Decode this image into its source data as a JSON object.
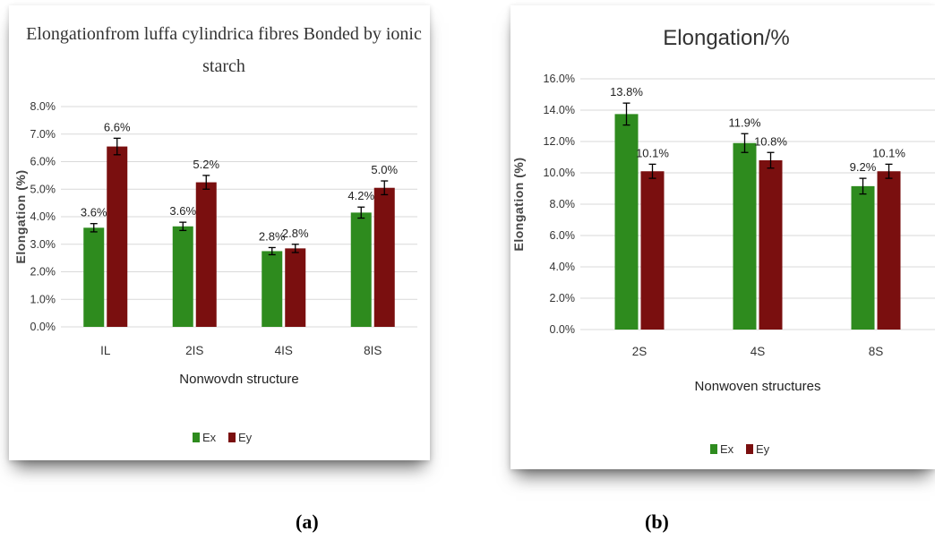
{
  "colors": {
    "ex": "#2e8b1e",
    "ey": "#7a0f0f",
    "grid": "#d9d9d9"
  },
  "captions": {
    "a": "(a)",
    "b": "(b)"
  },
  "chart_data": [
    {
      "type": "bar",
      "title_lines": [
        "Elongationfrom luffa cylindrica fibres Bonded by ionic",
        "starch"
      ],
      "xlabel": "Nonwovdn structure",
      "ylabel": "Elongation (%)",
      "categories": [
        "IL",
        "2IS",
        "4IS",
        "8IS"
      ],
      "ylim": [
        0,
        8
      ],
      "yticks": [
        0,
        1,
        2,
        3,
        4,
        5,
        6,
        7,
        8
      ],
      "tick_labels": [
        "0.0%",
        "1.0%",
        "2.0%",
        "3.0%",
        "4.0%",
        "5.0%",
        "6.0%",
        "7.0%",
        "8.0%"
      ],
      "grid": true,
      "legend_position": "bottom",
      "series": [
        {
          "name": "Ex",
          "values": [
            3.6,
            3.65,
            2.75,
            4.15
          ],
          "errors": [
            0.15,
            0.15,
            0.13,
            0.2
          ],
          "labels": [
            "3.6%",
            "3.6%",
            "2.8%",
            "4.2%"
          ]
        },
        {
          "name": "Ey",
          "values": [
            6.55,
            5.25,
            2.85,
            5.05
          ],
          "errors": [
            0.3,
            0.25,
            0.15,
            0.25
          ],
          "labels": [
            "6.6%",
            "5.2%",
            "2.8%",
            "5.0%"
          ]
        }
      ]
    },
    {
      "type": "bar",
      "title_lines": [
        "Elongation/%"
      ],
      "xlabel": "Nonwoven structures",
      "ylabel": "Elongation (%)",
      "categories": [
        "2S",
        "4S",
        "8S"
      ],
      "ylim": [
        0,
        16
      ],
      "yticks": [
        0,
        2,
        4,
        6,
        8,
        10,
        12,
        14,
        16
      ],
      "tick_labels": [
        "0.0%",
        "2.0%",
        "4.0%",
        "6.0%",
        "8.0%",
        "10.0%",
        "12.0%",
        "14.0%",
        "16.0%"
      ],
      "grid": true,
      "legend_position": "bottom",
      "series": [
        {
          "name": "Ex",
          "values": [
            13.75,
            11.9,
            9.15
          ],
          "errors": [
            0.7,
            0.6,
            0.5
          ],
          "labels": [
            "13.8%",
            "11.9%",
            "9.2%"
          ]
        },
        {
          "name": "Ey",
          "values": [
            10.1,
            10.8,
            10.1
          ],
          "errors": [
            0.45,
            0.5,
            0.45
          ],
          "labels": [
            "10.1%",
            "10.8%",
            "10.1%"
          ]
        }
      ]
    }
  ]
}
